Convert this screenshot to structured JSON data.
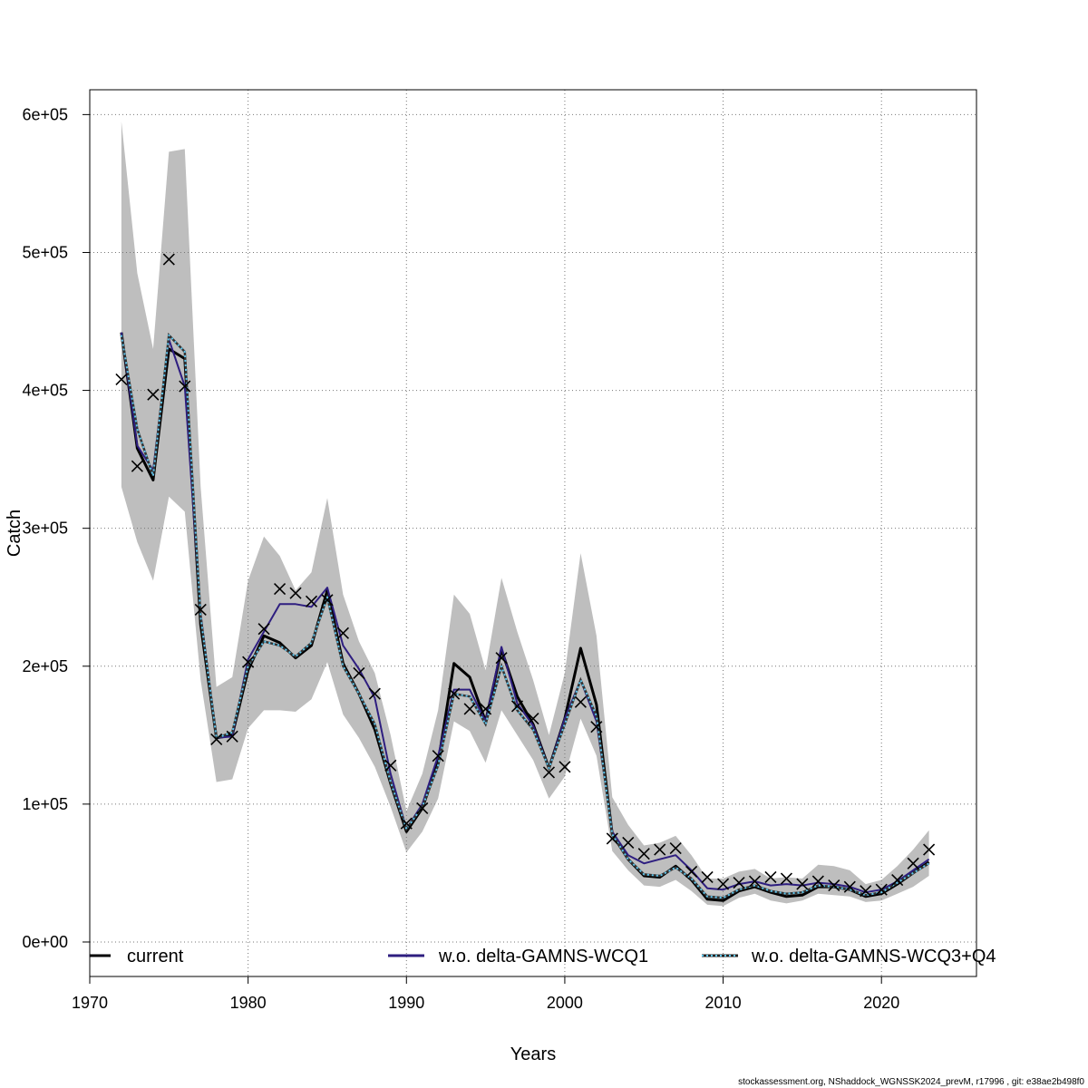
{
  "chart_data": {
    "type": "line",
    "xlabel": "Years",
    "ylabel": "Catch",
    "xlim": [
      1970,
      2026
    ],
    "ylim": [
      -25000,
      618000
    ],
    "x_ticks": [
      1970,
      1980,
      1990,
      2000,
      2010,
      2020
    ],
    "y_ticks": [
      0,
      100000,
      200000,
      300000,
      400000,
      500000,
      600000
    ],
    "x_tick_labels": [
      "1970",
      "1980",
      "1990",
      "2000",
      "2010",
      "2020"
    ],
    "y_tick_labels": [
      "0e+00",
      "1e+05",
      "2e+05",
      "3e+05",
      "4e+05",
      "5e+05",
      "6e+05"
    ],
    "grid": true,
    "legend_position": "bottom",
    "x": [
      1972,
      1973,
      1974,
      1975,
      1976,
      1977,
      1978,
      1979,
      1980,
      1981,
      1982,
      1983,
      1984,
      1985,
      1986,
      1987,
      1988,
      1989,
      1990,
      1991,
      1992,
      1993,
      1994,
      1995,
      1996,
      1997,
      1998,
      1999,
      2000,
      2001,
      2002,
      2003,
      2004,
      2005,
      2006,
      2007,
      2008,
      2009,
      2010,
      2011,
      2012,
      2013,
      2014,
      2015,
      2016,
      2017,
      2018,
      2019,
      2020,
      2021,
      2022,
      2023
    ],
    "confidence_band": {
      "color": "#bebebe",
      "lower": [
        330000,
        290000,
        262000,
        323000,
        312000,
        190000,
        116000,
        118000,
        155000,
        168000,
        168000,
        167000,
        176000,
        203000,
        165000,
        148000,
        127000,
        98000,
        65000,
        80000,
        104000,
        160000,
        153000,
        130000,
        168000,
        150000,
        132000,
        104000,
        120000,
        162000,
        135000,
        66000,
        52000,
        41000,
        40000,
        45000,
        37000,
        27000,
        26000,
        32000,
        35000,
        30000,
        28000,
        30000,
        35000,
        34000,
        33000,
        29000,
        30000,
        35000,
        40000,
        48000
      ],
      "upper": [
        595000,
        485000,
        430000,
        573000,
        575000,
        330000,
        185000,
        192000,
        262000,
        294000,
        280000,
        255000,
        268000,
        322000,
        252000,
        218000,
        195000,
        150000,
        95000,
        122000,
        168000,
        252000,
        238000,
        197000,
        264000,
        225000,
        190000,
        150000,
        195000,
        282000,
        222000,
        105000,
        85000,
        70000,
        72000,
        77000,
        63000,
        46000,
        46000,
        51000,
        53000,
        46000,
        47000,
        46000,
        56000,
        55000,
        52000,
        42000,
        45000,
        55000,
        67000,
        81000
      ]
    },
    "series": [
      {
        "name": "current",
        "color": "#000000",
        "dash": "solid",
        "values": [
          442000,
          358000,
          335000,
          430000,
          423000,
          230000,
          148000,
          150000,
          197000,
          222000,
          217000,
          206000,
          215000,
          255000,
          202000,
          180000,
          154000,
          115000,
          80000,
          97000,
          130000,
          202000,
          192000,
          160000,
          212000,
          178000,
          158000,
          126000,
          162000,
          213000,
          172000,
          78000,
          60000,
          48000,
          47000,
          55000,
          45000,
          31000,
          30000,
          37000,
          40000,
          36000,
          33000,
          34000,
          40000,
          40000,
          38000,
          33000,
          35000,
          42000,
          50000,
          58000
        ]
      },
      {
        "name": "w.o. delta-GAMNS-WCQ1",
        "color": "#2e1e80",
        "dash": "solid",
        "values": [
          442000,
          360000,
          342000,
          437000,
          403000,
          238000,
          148000,
          149000,
          205000,
          225000,
          245000,
          245000,
          243000,
          257000,
          215000,
          198000,
          177000,
          122000,
          82000,
          100000,
          135000,
          183000,
          183000,
          160000,
          214000,
          173000,
          157000,
          126000,
          162000,
          190000,
          160000,
          80000,
          63000,
          57000,
          60000,
          63000,
          52000,
          39000,
          38000,
          42000,
          44000,
          41000,
          42000,
          41000,
          43000,
          42000,
          40000,
          36000,
          38000,
          44000,
          52000,
          60000
        ]
      },
      {
        "name": "w.o. delta-GAMNS-WCQ3+Q4",
        "color": "#5fc8f0",
        "dash": "dotted",
        "values": [
          440000,
          372000,
          338000,
          440000,
          428000,
          236000,
          148000,
          152000,
          200000,
          218000,
          215000,
          207000,
          217000,
          250000,
          200000,
          180000,
          158000,
          116000,
          82000,
          98000,
          128000,
          180000,
          178000,
          158000,
          200000,
          168000,
          154000,
          126000,
          158000,
          190000,
          164000,
          78000,
          60000,
          49000,
          48000,
          54000,
          46000,
          33000,
          32000,
          38000,
          41000,
          37000,
          35000,
          36000,
          41000,
          40000,
          38000,
          34000,
          36000,
          43000,
          50000,
          57000
        ]
      }
    ],
    "observations": {
      "marker": "x",
      "color": "#000000",
      "values": [
        408000,
        345000,
        397000,
        495000,
        403000,
        241000,
        147000,
        149000,
        203000,
        227000,
        256000,
        253000,
        247000,
        248000,
        224000,
        195000,
        180000,
        128000,
        86000,
        97000,
        135000,
        180000,
        169000,
        169000,
        206000,
        171000,
        162000,
        123000,
        127000,
        174000,
        156000,
        75000,
        72000,
        64000,
        67000,
        68000,
        51000,
        47000,
        42000,
        43000,
        44000,
        47000,
        46000,
        42000,
        44000,
        41000,
        40000,
        37000,
        38000,
        45000,
        57000,
        67000
      ]
    }
  },
  "footer": {
    "text": "stockassessment.org, NShaddock_WGNSSK2024_prevM, r17996 , git: e38ae2b498f0"
  }
}
